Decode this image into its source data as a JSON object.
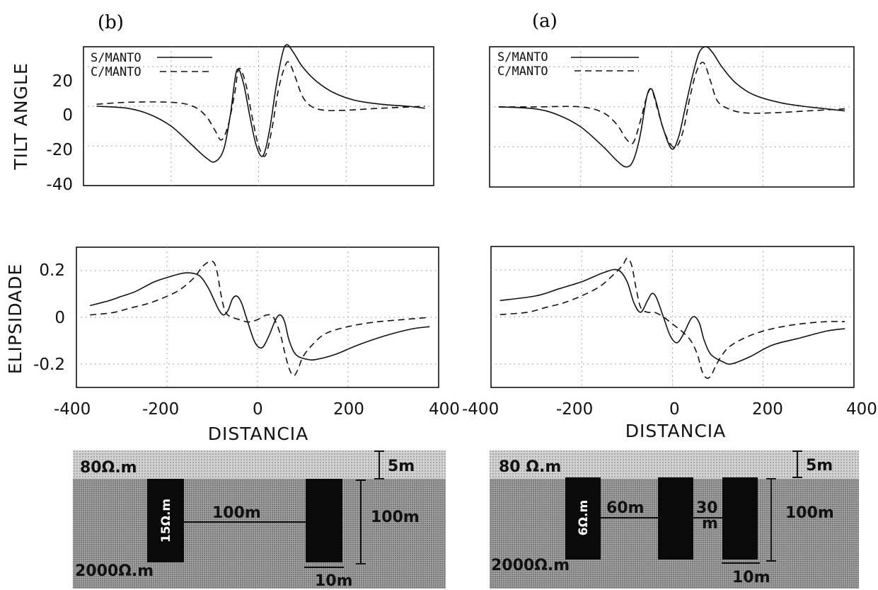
{
  "panels": [
    {
      "letter": "(b)"
    },
    {
      "letter": "(a)"
    }
  ],
  "chart_data": [
    {
      "type": "line",
      "panel": "(b)",
      "ylabel": "TILT ANGLE",
      "xlabel": "",
      "xlim": [
        -400,
        400
      ],
      "ylim": [
        -40,
        30
      ],
      "yticks": [
        "20",
        "0",
        "-20",
        "-40"
      ],
      "grid": "dotted",
      "legend": "top-left",
      "series": [
        {
          "name": "S/MANTO",
          "style": "solid",
          "x": [
            -370,
            -300,
            -250,
            -200,
            -150,
            -120,
            -100,
            -80,
            -65,
            -50,
            -35,
            -20,
            -5,
            10,
            25,
            40,
            55,
            65,
            80,
            100,
            130,
            170,
            220,
            280,
            340,
            380
          ],
          "y": [
            0,
            -1,
            -4,
            -10,
            -20,
            -26,
            -28,
            -22,
            -5,
            18,
            12,
            -5,
            -20,
            -25,
            -12,
            10,
            27,
            31,
            27,
            20,
            13,
            7,
            3,
            1,
            0,
            -1
          ]
        },
        {
          "name": "C/MANTO",
          "style": "dashed",
          "x": [
            -370,
            -300,
            -200,
            -150,
            -120,
            -100,
            -85,
            -70,
            -55,
            -45,
            -30,
            -15,
            0,
            15,
            30,
            45,
            60,
            70,
            85,
            100,
            120,
            150,
            200,
            280,
            380
          ],
          "y": [
            1,
            2,
            2,
            0,
            -5,
            -12,
            -17,
            -10,
            6,
            19,
            12,
            -5,
            -20,
            -25,
            -12,
            8,
            20,
            22,
            14,
            5,
            0,
            -2,
            -2,
            -1,
            0
          ]
        }
      ]
    },
    {
      "type": "line",
      "panel": "(a)",
      "ylabel": "",
      "xlabel": "",
      "xlim": [
        -400,
        400
      ],
      "ylim": [
        -40,
        30
      ],
      "grid": "dotted",
      "legend": "top-left",
      "series": [
        {
          "name": "S/MANTO",
          "style": "solid",
          "x": [
            -380,
            -300,
            -250,
            -200,
            -150,
            -120,
            -100,
            -85,
            -70,
            -55,
            -45,
            -35,
            -20,
            0,
            15,
            30,
            45,
            60,
            75,
            90,
            110,
            140,
            180,
            240,
            300,
            380
          ],
          "y": [
            0,
            -1,
            -4,
            -10,
            -20,
            -27,
            -30,
            -27,
            -15,
            5,
            9,
            3,
            -10,
            -21,
            -15,
            0,
            15,
            27,
            30,
            27,
            20,
            12,
            6,
            2,
            0,
            -2
          ]
        },
        {
          "name": "C/MANTO",
          "style": "dashed",
          "x": [
            -380,
            -300,
            -200,
            -150,
            -120,
            -100,
            -85,
            -70,
            -55,
            -45,
            -35,
            -20,
            -5,
            10,
            25,
            40,
            55,
            70,
            85,
            100,
            125,
            160,
            220,
            300,
            380
          ],
          "y": [
            0,
            0,
            0,
            -3,
            -9,
            -16,
            -18,
            -8,
            5,
            9,
            2,
            -10,
            -18,
            -20,
            -12,
            5,
            18,
            22,
            13,
            3,
            -1,
            -3,
            -3,
            -2,
            -1
          ]
        }
      ]
    },
    {
      "type": "line",
      "panel": "(b)",
      "ylabel": "ELIPSIDADE",
      "xlabel": "DISTANCIA",
      "xlim": [
        -400,
        400
      ],
      "ylim": [
        -0.3,
        0.3
      ],
      "xticks": [
        "-400",
        "-200",
        "0",
        "200",
        "400"
      ],
      "yticks": [
        "0.2",
        "0",
        "-0.2"
      ],
      "grid": "dotted",
      "series": [
        {
          "name": "S/MANTO",
          "style": "solid",
          "x": [
            -370,
            -330,
            -300,
            -270,
            -230,
            -200,
            -160,
            -130,
            -110,
            -95,
            -85,
            -75,
            -65,
            -55,
            -45,
            -35,
            -20,
            -5,
            10,
            25,
            40,
            50,
            60,
            70,
            85,
            110,
            130,
            170,
            220,
            280,
            340,
            380
          ],
          "y": [
            0.05,
            0.07,
            0.09,
            0.11,
            0.15,
            0.17,
            0.19,
            0.18,
            0.13,
            0.07,
            0.03,
            0.01,
            0.03,
            0.08,
            0.09,
            0.06,
            -0.03,
            -0.11,
            -0.13,
            -0.08,
            -0.01,
            0.01,
            -0.02,
            -0.1,
            -0.16,
            -0.18,
            -0.18,
            -0.16,
            -0.12,
            -0.08,
            -0.05,
            -0.04
          ]
        },
        {
          "name": "C/MANTO",
          "style": "dashed",
          "x": [
            -370,
            -320,
            -280,
            -240,
            -200,
            -170,
            -140,
            -120,
            -100,
            -90,
            -80,
            -70,
            -55,
            -40,
            -20,
            0,
            20,
            35,
            50,
            60,
            70,
            80,
            90,
            100,
            120,
            150,
            200,
            260,
            320,
            380
          ],
          "y": [
            0.01,
            0.02,
            0.04,
            0.06,
            0.09,
            0.12,
            0.17,
            0.22,
            0.24,
            0.2,
            0.09,
            0.02,
            0.0,
            -0.01,
            -0.02,
            -0.01,
            0.01,
            0.0,
            -0.07,
            -0.15,
            -0.22,
            -0.25,
            -0.22,
            -0.17,
            -0.12,
            -0.07,
            -0.04,
            -0.02,
            -0.01,
            0.0
          ]
        }
      ]
    },
    {
      "type": "line",
      "panel": "(a)",
      "ylabel": "",
      "xlabel": "DISTANCIA",
      "xlim": [
        -400,
        400
      ],
      "ylim": [
        -0.3,
        0.3
      ],
      "xticks": [
        "-400",
        "-200",
        "0",
        "200",
        "400"
      ],
      "grid": "dotted",
      "series": [
        {
          "name": "S/MANTO",
          "style": "solid",
          "x": [
            -380,
            -300,
            -250,
            -200,
            -150,
            -120,
            -100,
            -85,
            -70,
            -55,
            -45,
            -35,
            -20,
            -5,
            10,
            25,
            40,
            50,
            60,
            70,
            85,
            110,
            130,
            170,
            220,
            280,
            340,
            380
          ],
          "y": [
            0.07,
            0.09,
            0.12,
            0.15,
            0.19,
            0.2,
            0.15,
            0.06,
            0.02,
            0.07,
            0.1,
            0.08,
            0.0,
            -0.08,
            -0.11,
            -0.07,
            -0.01,
            0.0,
            -0.03,
            -0.1,
            -0.16,
            -0.19,
            -0.2,
            -0.17,
            -0.12,
            -0.09,
            -0.06,
            -0.05
          ]
        },
        {
          "name": "C/MANTO",
          "style": "dashed",
          "x": [
            -380,
            -320,
            -280,
            -240,
            -200,
            -160,
            -130,
            -110,
            -100,
            -90,
            -80,
            -70,
            -55,
            -40,
            -20,
            0,
            20,
            40,
            55,
            65,
            75,
            85,
            95,
            110,
            130,
            170,
            220,
            280,
            340,
            380
          ],
          "y": [
            0.01,
            0.02,
            0.04,
            0.06,
            0.09,
            0.13,
            0.18,
            0.22,
            0.25,
            0.22,
            0.12,
            0.04,
            0.02,
            0.02,
            0.0,
            -0.03,
            -0.06,
            -0.1,
            -0.16,
            -0.23,
            -0.26,
            -0.25,
            -0.21,
            -0.16,
            -0.12,
            -0.08,
            -0.05,
            -0.03,
            -0.02,
            -0.02
          ]
        }
      ]
    }
  ],
  "models": [
    {
      "panel": "(b)",
      "overburden": "80Ω.m",
      "host": "2000Ω.m",
      "thickness": "5m",
      "depth": "100m",
      "conductor": "15Ω.m",
      "spacing": "100m",
      "width": "10m"
    },
    {
      "panel": "(a)",
      "overburden": "80 Ω.m",
      "host": "2000Ω.m",
      "thickness": "5m",
      "depth": "100m",
      "conductor": "6Ω.m",
      "spacing": "60m",
      "spacing2": "30",
      "spacing2_unit": "m",
      "width": "10m"
    }
  ],
  "colors": {
    "ink": "#111111",
    "grid": "#888888"
  }
}
